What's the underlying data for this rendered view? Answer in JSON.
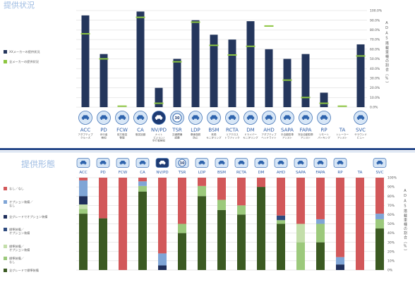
{
  "features": [
    {
      "icon": "adaptive-cruise-icon",
      "sublabel": [
        "アダプティブ",
        "クルーズ"
      ]
    },
    {
      "icon": "pedestrian-detection-icon",
      "sublabel": [
        "歩行者",
        "検知"
      ]
    },
    {
      "icon": "forward-collision-icon",
      "sublabel": [
        "前方衝突",
        "警報"
      ]
    },
    {
      "icon": "collision-avoidance-icon",
      "sublabel": [
        "衝突回避"
      ]
    },
    {
      "icon": "night-vision-icon",
      "dark": true,
      "sublabel": [
        "ナイト",
        "ビジョン/",
        "歩行者検知"
      ]
    },
    {
      "icon": "speed-limit-sign-icon",
      "icon_text": "30",
      "sublabel": [
        "交通標識",
        "認識"
      ]
    },
    {
      "icon": "lane-departure-icon",
      "sublabel": [
        "車線逸脱",
        "防止"
      ]
    },
    {
      "icon": "blind-spot-icon",
      "sublabel": [
        "死角",
        "モニタリング"
      ]
    },
    {
      "icon": "rear-cross-traffic-icon",
      "sublabel": [
        "リアクロス",
        "トラフィック"
      ]
    },
    {
      "icon": "driver-monitoring-icon",
      "sublabel": [
        "ドライバー",
        "モニタリング"
      ]
    },
    {
      "icon": "headlight-icon",
      "sublabel": [
        "アダプティブ",
        "ヘッドライト"
      ]
    },
    {
      "icon": "semi-auto-parking-icon",
      "sublabel": [
        "半自動駐車",
        "アシスト"
      ]
    },
    {
      "icon": "full-auto-parking-icon",
      "sublabel": [
        "完全自動駐車",
        "アシスト"
      ]
    },
    {
      "icon": "remote-parking-icon",
      "sublabel": [
        "リモート",
        "パーキング"
      ]
    },
    {
      "sublabel": [
        "トレーラー",
        "アシスト"
      ]
    },
    {
      "icon": "surround-view-icon",
      "sublabel": [
        "サラウンド",
        "ビュー"
      ]
    }
  ],
  "chart_data": [
    {
      "type": "bar",
      "title": "提供状況",
      "categories": [
        "ACC",
        "PD",
        "FCW",
        "CA",
        "NV/PD",
        "TSR",
        "LDP",
        "BSM",
        "RCTA",
        "DM",
        "AHD",
        "SAPA",
        "FAPA",
        "RP",
        "TA",
        "SVC"
      ],
      "series": [
        {
          "name": "XXメーカーの提供状況",
          "color": "#24365c",
          "values": [
            95,
            55,
            0,
            99,
            20,
            50,
            90,
            75,
            70,
            89,
            60,
            50,
            55,
            15,
            0,
            65
          ]
        },
        {
          "name": "全メーカーの提供状況",
          "color": "#8dc641",
          "values": [
            76,
            50,
            1,
            93,
            4,
            47,
            88,
            64,
            54,
            63,
            84,
            28,
            10,
            4,
            1,
            53
          ]
        }
      ],
      "ylim": [
        0,
        100
      ],
      "ytick_labels": [
        "0.0%",
        "10.0%",
        "20.0%",
        "30.0%",
        "40.0%",
        "50.0%",
        "60.0%",
        "70.0%",
        "80.0%",
        "90.0%",
        "100.0%"
      ],
      "ylabel": "ADAS搭載車種の割合（%）",
      "grid": true,
      "legend": "left"
    },
    {
      "type": "bar",
      "stacked": true,
      "title": "提供形態",
      "categories": [
        "ACC",
        "PD",
        "FCW",
        "CA",
        "NV/PD",
        "TSR",
        "LDP",
        "BSM",
        "RCTA",
        "DM",
        "AHD",
        "SAPA",
        "FAPA",
        "RP",
        "TA",
        "SVC"
      ],
      "series": [
        {
          "name": "なし／なし",
          "color": "#d2585a",
          "values": [
            3,
            44,
            100,
            4,
            82,
            50,
            9,
            24,
            30,
            10,
            41,
            50,
            45,
            86,
            100,
            39
          ]
        },
        {
          "name": "オプション装備／\nなし",
          "color": "#7fa5d6",
          "values": [
            17,
            0,
            0,
            5,
            13,
            0,
            0,
            0,
            0,
            0,
            0,
            0,
            5,
            8,
            0,
            6
          ]
        },
        {
          "name": "全グレードでオプション装備",
          "color": "#1f2f5b",
          "values": [
            9,
            0,
            0,
            0,
            5,
            0,
            0,
            0,
            0,
            0,
            0,
            0,
            0,
            6,
            0,
            0
          ]
        },
        {
          "name": "標準装備／\nオプション装備",
          "color": "#2e4a7e",
          "values": [
            0,
            0,
            0,
            0,
            0,
            0,
            0,
            0,
            0,
            0,
            5,
            0,
            0,
            0,
            0,
            0
          ]
        },
        {
          "name": "標準装備／\nオプション装備",
          "color": "#c3deaa",
          "values": [
            5,
            0,
            0,
            0,
            0,
            0,
            0,
            0,
            0,
            0,
            0,
            20,
            0,
            0,
            0,
            0
          ]
        },
        {
          "name": "標準装備／\nなし",
          "color": "#9cc97c",
          "values": [
            5,
            0,
            0,
            6,
            0,
            10,
            11,
            11,
            10,
            0,
            4,
            30,
            20,
            0,
            0,
            10
          ]
        },
        {
          "name": "全グレードで標準装備",
          "color": "#3b5a22",
          "values": [
            61,
            56,
            0,
            85,
            0,
            40,
            80,
            65,
            60,
            90,
            50,
            0,
            30,
            0,
            0,
            45
          ]
        }
      ],
      "ylim": [
        0,
        100
      ],
      "ytick_labels": [
        "0%",
        "10%",
        "20%",
        "30%",
        "40%",
        "50%",
        "60%",
        "70%",
        "80%",
        "90%",
        "100%"
      ],
      "ylabel": "ADAS搭載車種の割合（%）",
      "grid": true,
      "legend": "left"
    }
  ]
}
